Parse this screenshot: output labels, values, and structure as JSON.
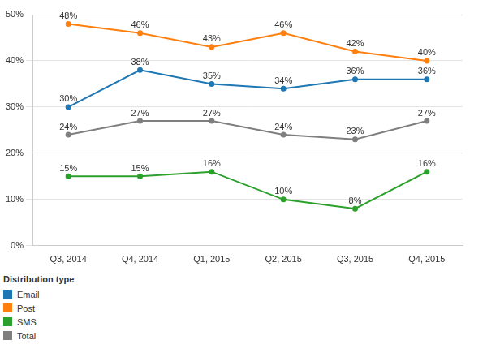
{
  "chart_data": {
    "type": "line",
    "categories": [
      "Q3, 2014",
      "Q4, 2014",
      "Q1, 2015",
      "Q2, 2015",
      "Q3, 2015",
      "Q4, 2015"
    ],
    "series": [
      {
        "name": "Email",
        "color": "#1f77b4",
        "values": [
          30,
          38,
          35,
          34,
          36,
          36
        ],
        "value_labels": [
          "30%",
          "38%",
          "35%",
          "34%",
          "36%",
          "36%"
        ]
      },
      {
        "name": "Post",
        "color": "#ff7f0e",
        "values": [
          48,
          46,
          43,
          46,
          42,
          40
        ],
        "value_labels": [
          "48%",
          "46%",
          "43%",
          "46%",
          "42%",
          "40%"
        ]
      },
      {
        "name": "SMS",
        "color": "#2ca02c",
        "values": [
          15,
          15,
          16,
          10,
          8,
          16
        ],
        "value_labels": [
          "15%",
          "15%",
          "16%",
          "10%",
          "8%",
          "16%"
        ]
      },
      {
        "name": "Total",
        "color": "#7f7f7f",
        "values": [
          24,
          27,
          27,
          24,
          23,
          27
        ],
        "value_labels": [
          "24%",
          "27%",
          "27%",
          "24%",
          "23%",
          "27%"
        ]
      }
    ],
    "ylim": [
      0,
      50
    ],
    "yticks": [
      {
        "value": 0,
        "label": "0%"
      },
      {
        "value": 10,
        "label": "10%"
      },
      {
        "value": 20,
        "label": "20%"
      },
      {
        "value": 30,
        "label": "30%"
      },
      {
        "value": 40,
        "label": "40%"
      },
      {
        "value": 50,
        "label": "50%"
      }
    ],
    "grid": true,
    "data_labels": true,
    "marker": "circle",
    "legend": "bottom-left",
    "legend_title": "Distribution type"
  }
}
